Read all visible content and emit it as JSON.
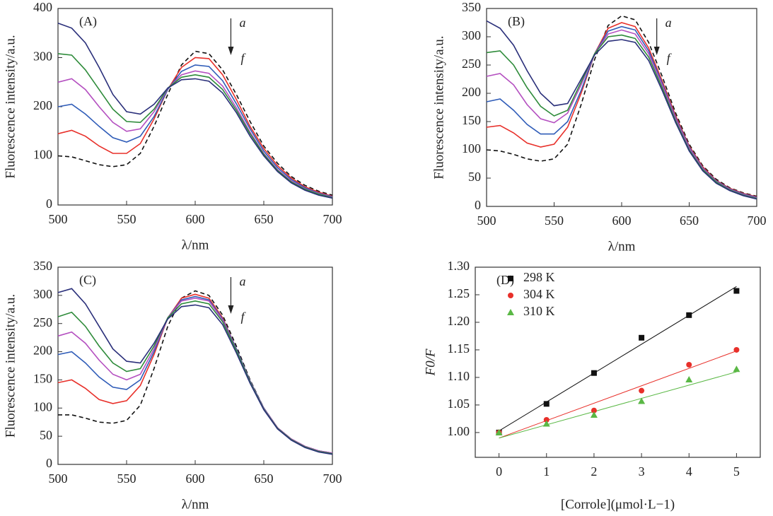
{
  "chart_data": [
    {
      "type": "line",
      "panel_label": "(A)",
      "arrow_labels": [
        "a",
        "f"
      ],
      "xlabel": "λ/nm",
      "ylabel": "Fluorescence intensity/a.u.",
      "xlim": [
        500,
        700
      ],
      "xticks": [
        500,
        550,
        600,
        650,
        700
      ],
      "ylim": [
        0,
        400
      ],
      "yticks": [
        0,
        100,
        200,
        300,
        400
      ],
      "x": [
        500,
        510,
        520,
        530,
        540,
        550,
        560,
        570,
        580,
        590,
        600,
        610,
        620,
        630,
        640,
        650,
        660,
        670,
        680,
        690,
        700
      ],
      "series": [
        {
          "color": "#111111",
          "dashed": true,
          "values": [
            100,
            98,
            90,
            82,
            78,
            82,
            105,
            160,
            225,
            285,
            313,
            308,
            275,
            225,
            170,
            120,
            85,
            58,
            40,
            28,
            20
          ]
        },
        {
          "color": "#e8302a",
          "values": [
            145,
            152,
            140,
            120,
            105,
            105,
            125,
            175,
            235,
            280,
            300,
            298,
            265,
            215,
            160,
            115,
            80,
            55,
            37,
            26,
            18
          ]
        },
        {
          "color": "#2f5cb8",
          "values": [
            200,
            205,
            185,
            160,
            137,
            128,
            140,
            180,
            235,
            272,
            285,
            282,
            253,
            206,
            155,
            110,
            76,
            52,
            35,
            24,
            17
          ]
        },
        {
          "color": "#b44fc0",
          "values": [
            250,
            257,
            235,
            200,
            168,
            150,
            155,
            190,
            237,
            265,
            273,
            268,
            242,
            198,
            148,
            105,
            72,
            49,
            33,
            23,
            16
          ]
        },
        {
          "color": "#2e8b3a",
          "values": [
            308,
            305,
            275,
            235,
            195,
            170,
            168,
            195,
            238,
            260,
            265,
            260,
            235,
            193,
            145,
            103,
            70,
            47,
            32,
            22,
            15
          ]
        },
        {
          "color": "#2a2f7a",
          "values": [
            370,
            360,
            330,
            280,
            225,
            190,
            185,
            205,
            238,
            255,
            257,
            252,
            228,
            188,
            140,
            100,
            68,
            45,
            30,
            20,
            14
          ]
        }
      ]
    },
    {
      "type": "line",
      "panel_label": "(B)",
      "arrow_labels": [
        "a",
        "f"
      ],
      "xlabel": "λ/nm",
      "ylabel": "Fluorescence intensity/a.u.",
      "xlim": [
        500,
        700
      ],
      "xticks": [
        500,
        550,
        600,
        650,
        700
      ],
      "ylim": [
        0,
        350
      ],
      "yticks": [
        0,
        50,
        100,
        150,
        200,
        250,
        300,
        350
      ],
      "x": [
        500,
        510,
        520,
        530,
        540,
        550,
        560,
        570,
        580,
        590,
        600,
        610,
        620,
        630,
        640,
        650,
        660,
        670,
        680,
        690,
        700
      ],
      "series": [
        {
          "color": "#111111",
          "dashed": true,
          "values": [
            100,
            98,
            92,
            84,
            80,
            84,
            110,
            180,
            260,
            320,
            337,
            330,
            290,
            230,
            165,
            110,
            72,
            48,
            33,
            24,
            18
          ]
        },
        {
          "color": "#e8302a",
          "values": [
            140,
            143,
            130,
            112,
            105,
            110,
            140,
            200,
            270,
            315,
            325,
            318,
            280,
            222,
            160,
            107,
            70,
            46,
            32,
            23,
            17
          ]
        },
        {
          "color": "#2f5cb8",
          "values": [
            185,
            190,
            170,
            145,
            128,
            128,
            150,
            205,
            270,
            310,
            318,
            312,
            275,
            218,
            157,
            105,
            68,
            45,
            31,
            22,
            16
          ]
        },
        {
          "color": "#b44fc0",
          "values": [
            230,
            235,
            215,
            180,
            155,
            148,
            165,
            215,
            270,
            305,
            312,
            305,
            270,
            215,
            155,
            103,
            67,
            44,
            30,
            21,
            15
          ]
        },
        {
          "color": "#2e8b3a",
          "values": [
            272,
            275,
            250,
            210,
            177,
            160,
            170,
            220,
            270,
            300,
            303,
            297,
            264,
            210,
            151,
            100,
            65,
            43,
            29,
            20,
            14
          ]
        },
        {
          "color": "#2a2f7a",
          "values": [
            328,
            315,
            285,
            240,
            200,
            178,
            182,
            225,
            268,
            292,
            295,
            290,
            258,
            205,
            148,
            98,
            63,
            41,
            28,
            19,
            13
          ]
        }
      ]
    },
    {
      "type": "line",
      "panel_label": "(C)",
      "arrow_labels": [
        "a",
        "f"
      ],
      "xlabel": "λ/nm",
      "ylabel": "Fluorescence intensity/a.u.",
      "xlim": [
        500,
        700
      ],
      "xticks": [
        500,
        550,
        600,
        650,
        700
      ],
      "ylim": [
        0,
        350
      ],
      "yticks": [
        0,
        50,
        100,
        150,
        200,
        250,
        300,
        350
      ],
      "x": [
        500,
        510,
        520,
        530,
        540,
        550,
        560,
        570,
        580,
        590,
        600,
        610,
        620,
        630,
        640,
        650,
        660,
        670,
        680,
        690,
        700
      ],
      "series": [
        {
          "color": "#111111",
          "dashed": true,
          "values": [
            88,
            88,
            82,
            75,
            73,
            78,
            105,
            170,
            245,
            295,
            308,
            300,
            265,
            210,
            150,
            100,
            65,
            45,
            32,
            24,
            20
          ]
        },
        {
          "color": "#e8302a",
          "values": [
            145,
            150,
            135,
            115,
            108,
            113,
            140,
            195,
            260,
            295,
            302,
            295,
            260,
            205,
            148,
            100,
            65,
            45,
            32,
            24,
            20
          ]
        },
        {
          "color": "#2f5cb8",
          "values": [
            195,
            200,
            180,
            155,
            137,
            133,
            150,
            200,
            260,
            292,
            298,
            292,
            258,
            205,
            148,
            100,
            65,
            45,
            32,
            24,
            20
          ]
        },
        {
          "color": "#b44fc0",
          "values": [
            228,
            235,
            215,
            185,
            160,
            150,
            160,
            205,
            260,
            290,
            295,
            290,
            256,
            203,
            147,
            99,
            65,
            45,
            32,
            24,
            20
          ]
        },
        {
          "color": "#2e8b3a",
          "values": [
            262,
            270,
            245,
            210,
            180,
            165,
            170,
            210,
            260,
            285,
            290,
            285,
            253,
            202,
            146,
            98,
            64,
            44,
            31,
            23,
            19
          ]
        },
        {
          "color": "#2a2f7a",
          "values": [
            305,
            312,
            285,
            245,
            205,
            183,
            180,
            215,
            258,
            280,
            283,
            278,
            248,
            198,
            144,
            97,
            63,
            43,
            30,
            22,
            18
          ]
        }
      ]
    },
    {
      "type": "scatter",
      "panel_label": "(D)",
      "xlabel": "[Corrole](μmol·L−1)",
      "ylabel": "F0/F",
      "legend": "upper left",
      "xlim": [
        -0.5,
        5.5
      ],
      "xticks": [
        0,
        1,
        2,
        3,
        4,
        5
      ],
      "ylim": [
        0.955,
        1.3
      ],
      "yticks": [
        {
          "value": 1.0,
          "label": "1.00"
        },
        1.05,
        {
          "value": 1.1,
          "label": "1.10"
        },
        1.15,
        {
          "value": 1.2,
          "label": "1.20"
        },
        1.25,
        {
          "value": 1.3,
          "label": "1.30"
        }
      ],
      "x": [
        0,
        1,
        2,
        3,
        4,
        5
      ],
      "series": [
        {
          "name": "298 K",
          "color": "#111111",
          "marker": "square",
          "values": [
            1.0,
            1.052,
            1.108,
            1.172,
            1.213,
            1.257
          ],
          "fit": [
            1.003,
            1.265
          ]
        },
        {
          "name": "304 K",
          "color": "#e8302a",
          "marker": "circle",
          "values": [
            1.0,
            1.023,
            1.04,
            1.076,
            1.123,
            1.15
          ],
          "fit": [
            0.99,
            1.148
          ]
        },
        {
          "name": "310 K",
          "color": "#5ab845",
          "marker": "triangle",
          "values": [
            1.0,
            1.016,
            1.032,
            1.057,
            1.096,
            1.115
          ],
          "fit": [
            0.99,
            1.11
          ]
        }
      ]
    }
  ]
}
